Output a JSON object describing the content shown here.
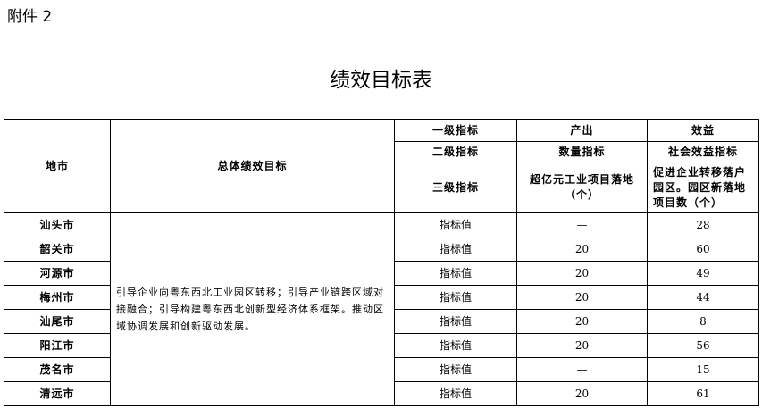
{
  "attachment": "附件 2",
  "title": "绩效目标表",
  "headers": {
    "region": "地市",
    "goal": "总体绩效目标",
    "level1": "一级指标",
    "level2": "二级指标",
    "level3": "三级指标",
    "output": "产出",
    "benefit": "效益",
    "quantity": "数量指标",
    "social": "社会效益指标",
    "ind1": "超亿元工业项目落地（个）",
    "ind2": "促进企业转移落户园区。园区新落地项目数（个）"
  },
  "goal_text": "引导企业向粤东西北工业园区转移；引导产业链跨区域对接融合；引导构建粤东西北创新型经济体系框架。推动区域协调发展和创新驱动发展。",
  "rows": [
    {
      "city": "汕头市",
      "label": "指标值",
      "v1": "—",
      "v2": "28"
    },
    {
      "city": "韶关市",
      "label": "指标值",
      "v1": "20",
      "v2": "60"
    },
    {
      "city": "河源市",
      "label": "指标值",
      "v1": "20",
      "v2": "49"
    },
    {
      "city": "梅州市",
      "label": "指标值",
      "v1": "20",
      "v2": "44"
    },
    {
      "city": "汕尾市",
      "label": "指标值",
      "v1": "20",
      "v2": "8"
    },
    {
      "city": "阳江市",
      "label": "指标值",
      "v1": "20",
      "v2": "56"
    },
    {
      "city": "茂名市",
      "label": "指标值",
      "v1": "—",
      "v2": "15"
    },
    {
      "city": "清远市",
      "label": "指标值",
      "v1": "20",
      "v2": "61"
    }
  ]
}
